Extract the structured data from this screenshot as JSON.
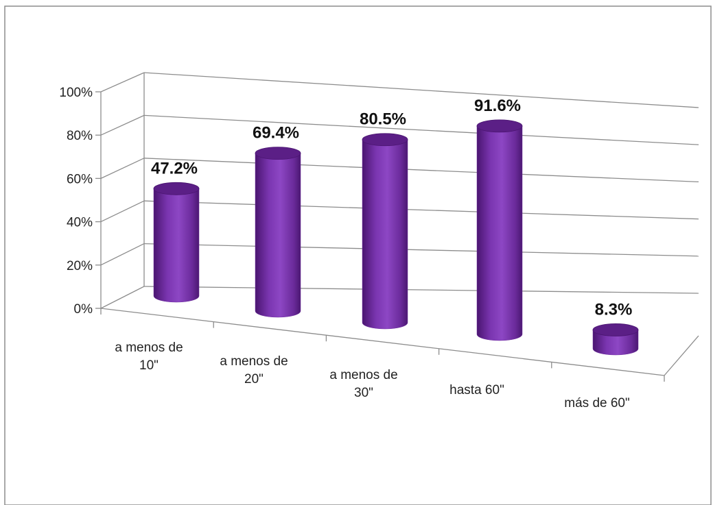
{
  "chart_data": {
    "type": "bar",
    "style": "3d-cylinder",
    "categories": [
      [
        "a menos de",
        "10\""
      ],
      [
        "a menos de",
        "20\""
      ],
      [
        "a menos de",
        "30\""
      ],
      [
        "hasta 60\""
      ],
      [
        "más de 60\""
      ]
    ],
    "values": [
      47.2,
      69.4,
      80.5,
      91.6,
      8.3
    ],
    "data_labels": [
      "47.2%",
      "69.4%",
      "80.5%",
      "91.6%",
      "8.3%"
    ],
    "y_ticks": [
      "0%",
      "20%",
      "40%",
      "60%",
      "80%",
      "100%"
    ],
    "ylim": [
      0,
      100
    ],
    "grid": true,
    "legend": "none",
    "colors": {
      "bar_body": "#7030a0",
      "bar_top": "#5b1f86",
      "grid": "#8c8c8c",
      "frame": "#8c8c8c"
    }
  }
}
